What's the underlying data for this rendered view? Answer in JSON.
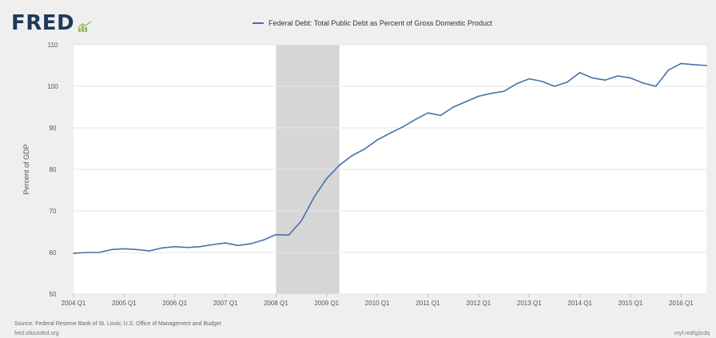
{
  "branding": {
    "logo_text": "FRED",
    "logo_icon": "chart-line-icon"
  },
  "legend": {
    "label": "Federal Debt: Total Public Debt as Percent of Gross Domestic Product"
  },
  "colors": {
    "line": "#4572a7",
    "recession": "#d6d6d6",
    "grid": "#e6e6e6",
    "plot_bg": "#ffffff",
    "logo": "#1e3a5a"
  },
  "footer": {
    "source": "Source: Federal Reserve Bank of St. Louis; U.S. Office of Management and Budget",
    "left": "fred.stlouisfed.org",
    "right": "myf.red/g/jcdq"
  },
  "chart_data": {
    "type": "line",
    "title": "",
    "xlabel": "",
    "ylabel": "Percent of GDP",
    "ylim": [
      50,
      110
    ],
    "yticks": [
      50,
      60,
      70,
      80,
      90,
      100,
      110
    ],
    "xlim": [
      "2004 Q1",
      "2016 Q3"
    ],
    "xticks": [
      "2004 Q1",
      "2005 Q1",
      "2006 Q1",
      "2007 Q1",
      "2008 Q1",
      "2009 Q1",
      "2010 Q1",
      "2011 Q1",
      "2012 Q1",
      "2013 Q1",
      "2014 Q1",
      "2015 Q1",
      "2016 Q1"
    ],
    "grid": true,
    "legend_position": "top",
    "recession_shading": [
      {
        "start": "2008 Q1",
        "end": "2009 Q2"
      }
    ],
    "series": [
      {
        "name": "Federal Debt: Total Public Debt as Percent of Gross Domestic Product",
        "x": [
          "2004 Q1",
          "2004 Q2",
          "2004 Q3",
          "2004 Q4",
          "2005 Q1",
          "2005 Q2",
          "2005 Q3",
          "2005 Q4",
          "2006 Q1",
          "2006 Q2",
          "2006 Q3",
          "2006 Q4",
          "2007 Q1",
          "2007 Q2",
          "2007 Q3",
          "2007 Q4",
          "2008 Q1",
          "2008 Q2",
          "2008 Q3",
          "2008 Q4",
          "2009 Q1",
          "2009 Q2",
          "2009 Q3",
          "2009 Q4",
          "2010 Q1",
          "2010 Q2",
          "2010 Q3",
          "2010 Q4",
          "2011 Q1",
          "2011 Q2",
          "2011 Q3",
          "2011 Q4",
          "2012 Q1",
          "2012 Q2",
          "2012 Q3",
          "2012 Q4",
          "2013 Q1",
          "2013 Q2",
          "2013 Q3",
          "2013 Q4",
          "2014 Q1",
          "2014 Q2",
          "2014 Q3",
          "2014 Q4",
          "2015 Q1",
          "2015 Q2",
          "2015 Q3",
          "2015 Q4",
          "2016 Q1",
          "2016 Q2",
          "2016 Q3"
        ],
        "values": [
          59.8,
          60.0,
          60.0,
          60.7,
          60.9,
          60.7,
          60.4,
          61.1,
          61.4,
          61.2,
          61.4,
          61.9,
          62.3,
          61.7,
          62.1,
          63.0,
          64.3,
          64.2,
          67.6,
          73.3,
          77.8,
          81.0,
          83.3,
          84.9,
          87.1,
          88.7,
          90.2,
          92.0,
          93.6,
          93.0,
          95.0,
          96.3,
          97.6,
          98.3,
          98.8,
          100.6,
          101.8,
          101.2,
          100.0,
          101.0,
          103.3,
          102.0,
          101.5,
          102.5,
          102.0,
          100.8,
          100.0,
          103.9,
          105.5,
          105.2,
          105.0
        ]
      }
    ]
  }
}
